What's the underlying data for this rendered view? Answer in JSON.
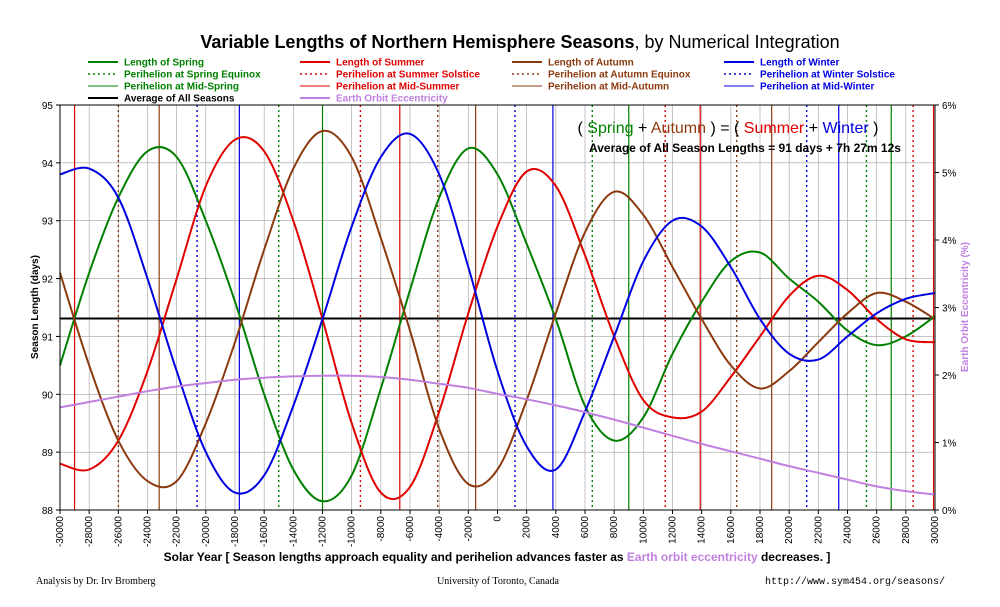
{
  "chart_data": {
    "type": "line",
    "title": "Variable Lengths of Northern Hemisphere Seasons",
    "title_suffix": ", by Numerical Integration",
    "xlabel_parts": [
      "Solar Year [ Season lengths approach equality and perihelion advances faster as ",
      "Earth orbit eccentricity",
      " decreases. ]"
    ],
    "ylabel": "Season Length (days)",
    "y2label": "Earth Orbit Eccentricity (%)",
    "xlim": [
      -30000,
      30000
    ],
    "ylim": [
      88,
      95
    ],
    "y2lim": [
      0,
      6
    ],
    "x_ticks": [
      "-30000",
      "-28000",
      "-26000",
      "-24000",
      "-22000",
      "-20000",
      "-18000",
      "-16000",
      "-14000",
      "-12000",
      "-10000",
      "-8000",
      "-6000",
      "-4000",
      "-2000",
      "0",
      "2000",
      "4000",
      "6000",
      "8000",
      "10000",
      "12000",
      "14000",
      "16000",
      "18000",
      "20000",
      "22000",
      "24000",
      "26000",
      "28000",
      "30000"
    ],
    "y_ticks": [
      "88",
      "89",
      "90",
      "91",
      "92",
      "93",
      "94",
      "95"
    ],
    "y2_ticks": [
      "0%",
      "1%",
      "2%",
      "3%",
      "4%",
      "5%",
      "6%"
    ],
    "grid": true,
    "average_value": 91.31,
    "annotation": {
      "line1": [
        {
          "text": "( ",
          "color": "#000000"
        },
        {
          "text": "Spring",
          "color": "#008000"
        },
        {
          "text": " + ",
          "color": "#000000"
        },
        {
          "text": "Autumn",
          "color": "#8b3a0f"
        },
        {
          "text": " ) = ( ",
          "color": "#000000"
        },
        {
          "text": "Summer",
          "color": "#e00000"
        },
        {
          "text": " + ",
          "color": "#000000"
        },
        {
          "text": "Winter",
          "color": "#0000e0"
        },
        {
          "text": " )",
          "color": "#000000"
        }
      ],
      "line2": "Average of All Season Lengths = 91 days + 7h 27m 12s"
    },
    "legend": [
      {
        "label": "Length of Spring",
        "color": "#008000",
        "style": "solid",
        "width": 2
      },
      {
        "label": "Length of Summer",
        "color": "#e00000",
        "style": "solid",
        "width": 2
      },
      {
        "label": "Length of Autumn",
        "color": "#8b3a0f",
        "style": "solid",
        "width": 2
      },
      {
        "label": "Length of Winter",
        "color": "#0000e0",
        "style": "solid",
        "width": 2
      },
      {
        "label": "Perihelion at Spring Equinox",
        "color": "#008000",
        "style": "dotted",
        "width": 1.5
      },
      {
        "label": "Perihelion at Summer Solstice",
        "color": "#e00000",
        "style": "dotted",
        "width": 1.5
      },
      {
        "label": "Perihelion at Autumn Equinox",
        "color": "#8b3a0f",
        "style": "dotted",
        "width": 1.5
      },
      {
        "label": "Perihelion at Winter Solstice",
        "color": "#0000e0",
        "style": "dotted",
        "width": 1.5
      },
      {
        "label": "Perihelion at Mid-Spring",
        "color": "#008000",
        "style": "solid",
        "width": 1
      },
      {
        "label": "Perihelion at Mid-Summer",
        "color": "#e00000",
        "style": "solid",
        "width": 1
      },
      {
        "label": "Perihelion at Mid-Autumn",
        "color": "#8b3a0f",
        "style": "solid",
        "width": 1
      },
      {
        "label": "Perihelion at Mid-Winter",
        "color": "#0000e0",
        "style": "solid",
        "width": 1
      },
      {
        "label": "Average of All Seasons",
        "color": "#000000",
        "style": "solid",
        "width": 2
      },
      {
        "label": "Earth Orbit Eccentricity",
        "color": "#c080e0",
        "style": "solid",
        "width": 2
      }
    ],
    "series": [
      {
        "name": "Length of Spring",
        "color": "#008000",
        "x": [
          -30000,
          -28000,
          -26000,
          -24000,
          -22000,
          -20000,
          -18000,
          -16000,
          -14000,
          -12000,
          -10000,
          -8000,
          -6000,
          -4000,
          -2000,
          0,
          2000,
          4000,
          6000,
          8000,
          10000,
          12000,
          14000,
          16000,
          18000,
          20000,
          22000,
          24000,
          26000,
          28000,
          30000
        ],
        "y": [
          90.5,
          92.1,
          93.4,
          94.2,
          94.1,
          93.0,
          91.6,
          90.0,
          88.7,
          88.15,
          88.6,
          90.1,
          91.8,
          93.4,
          94.25,
          93.8,
          92.6,
          91.3,
          89.8,
          89.2,
          89.6,
          90.7,
          91.6,
          92.3,
          92.45,
          92.0,
          91.6,
          91.1,
          90.85,
          91.0,
          91.35
        ]
      },
      {
        "name": "Length of Summer",
        "color": "#e00000",
        "x": [
          -30000,
          -28000,
          -26000,
          -24000,
          -22000,
          -20000,
          -18000,
          -16000,
          -14000,
          -12000,
          -10000,
          -8000,
          -6000,
          -4000,
          -2000,
          0,
          2000,
          4000,
          6000,
          8000,
          10000,
          12000,
          14000,
          16000,
          18000,
          20000,
          22000,
          24000,
          26000,
          28000,
          30000
        ],
        "y": [
          88.8,
          88.7,
          89.2,
          90.4,
          92.0,
          93.6,
          94.4,
          94.2,
          93.0,
          91.3,
          89.5,
          88.3,
          88.4,
          89.7,
          91.4,
          92.9,
          93.85,
          93.6,
          92.4,
          91.0,
          89.9,
          89.6,
          89.7,
          90.3,
          91.0,
          91.7,
          92.05,
          91.8,
          91.3,
          90.95,
          90.9
        ]
      },
      {
        "name": "Length of Autumn",
        "color": "#8b3a0f",
        "x": [
          -30000,
          -28000,
          -26000,
          -24000,
          -22000,
          -20000,
          -18000,
          -16000,
          -14000,
          -12000,
          -10000,
          -8000,
          -6000,
          -4000,
          -2000,
          0,
          2000,
          4000,
          6000,
          8000,
          10000,
          12000,
          14000,
          16000,
          18000,
          20000,
          22000,
          24000,
          26000,
          28000,
          30000
        ],
        "y": [
          92.1,
          90.5,
          89.2,
          88.5,
          88.5,
          89.5,
          90.9,
          92.5,
          93.9,
          94.55,
          94.1,
          92.7,
          91.1,
          89.4,
          88.45,
          88.7,
          89.9,
          91.4,
          92.8,
          93.5,
          93.1,
          92.2,
          91.3,
          90.5,
          90.1,
          90.4,
          90.9,
          91.4,
          91.75,
          91.6,
          91.3
        ]
      },
      {
        "name": "Length of Winter",
        "color": "#0000e0",
        "x": [
          -30000,
          -28000,
          -26000,
          -24000,
          -22000,
          -20000,
          -18000,
          -16000,
          -14000,
          -12000,
          -10000,
          -8000,
          -6000,
          -4000,
          -2000,
          0,
          2000,
          4000,
          6000,
          8000,
          10000,
          12000,
          14000,
          16000,
          18000,
          20000,
          22000,
          24000,
          26000,
          28000,
          30000
        ],
        "y": [
          93.8,
          93.9,
          93.4,
          92.0,
          90.4,
          89.0,
          88.3,
          88.6,
          89.8,
          91.3,
          92.9,
          94.1,
          94.5,
          93.8,
          92.2,
          90.4,
          89.1,
          88.7,
          89.7,
          91.0,
          92.3,
          93.0,
          92.9,
          92.2,
          91.3,
          90.7,
          90.6,
          91.0,
          91.4,
          91.65,
          91.75
        ]
      },
      {
        "name": "Earth Orbit Eccentricity",
        "color": "#c080e0",
        "axis": "secondary",
        "x": [
          -30000,
          -28000,
          -26000,
          -24000,
          -22000,
          -20000,
          -18000,
          -16000,
          -14000,
          -12000,
          -10000,
          -8000,
          -6000,
          -4000,
          -2000,
          0,
          2000,
          4000,
          6000,
          8000,
          10000,
          12000,
          14000,
          16000,
          18000,
          20000,
          22000,
          24000,
          26000,
          28000,
          30000
        ],
        "y": [
          1.52,
          1.6,
          1.68,
          1.76,
          1.83,
          1.88,
          1.93,
          1.96,
          1.98,
          1.99,
          1.99,
          1.97,
          1.93,
          1.87,
          1.81,
          1.72,
          1.64,
          1.55,
          1.45,
          1.34,
          1.22,
          1.1,
          0.98,
          0.87,
          0.76,
          0.65,
          0.55,
          0.45,
          0.35,
          0.28,
          0.23
        ]
      }
    ],
    "perihelion_markers": [
      {
        "x": -29000,
        "color": "#e00000",
        "style": "solid"
      },
      {
        "x": -26000,
        "color": "#8b3a0f",
        "style": "dotted"
      },
      {
        "x": -23200,
        "color": "#8b3a0f",
        "style": "solid"
      },
      {
        "x": -20600,
        "color": "#0000e0",
        "style": "dotted"
      },
      {
        "x": -17700,
        "color": "#0000e0",
        "style": "solid"
      },
      {
        "x": -15000,
        "color": "#008000",
        "style": "dotted"
      },
      {
        "x": -12000,
        "color": "#008000",
        "style": "solid"
      },
      {
        "x": -9400,
        "color": "#e00000",
        "style": "dotted"
      },
      {
        "x": -6700,
        "color": "#e00000",
        "style": "solid"
      },
      {
        "x": -4100,
        "color": "#8b3a0f",
        "style": "dotted"
      },
      {
        "x": -1500,
        "color": "#8b3a0f",
        "style": "solid"
      },
      {
        "x": 1200,
        "color": "#0000e0",
        "style": "dotted"
      },
      {
        "x": 3800,
        "color": "#0000e0",
        "style": "solid"
      },
      {
        "x": 6500,
        "color": "#008000",
        "style": "dotted"
      },
      {
        "x": 9000,
        "color": "#008000",
        "style": "solid"
      },
      {
        "x": 11500,
        "color": "#e00000",
        "style": "dotted"
      },
      {
        "x": 13900,
        "color": "#e00000",
        "style": "solid"
      },
      {
        "x": 16400,
        "color": "#8b3a0f",
        "style": "dotted"
      },
      {
        "x": 18800,
        "color": "#8b3a0f",
        "style": "solid"
      },
      {
        "x": 21200,
        "color": "#0000e0",
        "style": "dotted"
      },
      {
        "x": 23400,
        "color": "#0000e0",
        "style": "solid"
      },
      {
        "x": 25300,
        "color": "#008000",
        "style": "dotted"
      },
      {
        "x": 27000,
        "color": "#008000",
        "style": "solid"
      },
      {
        "x": 28500,
        "color": "#e00000",
        "style": "dotted"
      },
      {
        "x": 29900,
        "color": "#e00000",
        "style": "solid"
      }
    ]
  },
  "colors": {
    "xlabel_highlight": "#c080e0",
    "y2_axis": "#c080e0",
    "grid": "#a0a0a0"
  },
  "footer": {
    "left": "Analysis by Dr. Irv Bromberg",
    "center": "University of Toronto, Canada",
    "right": "http://www.sym454.org/seasons/"
  }
}
